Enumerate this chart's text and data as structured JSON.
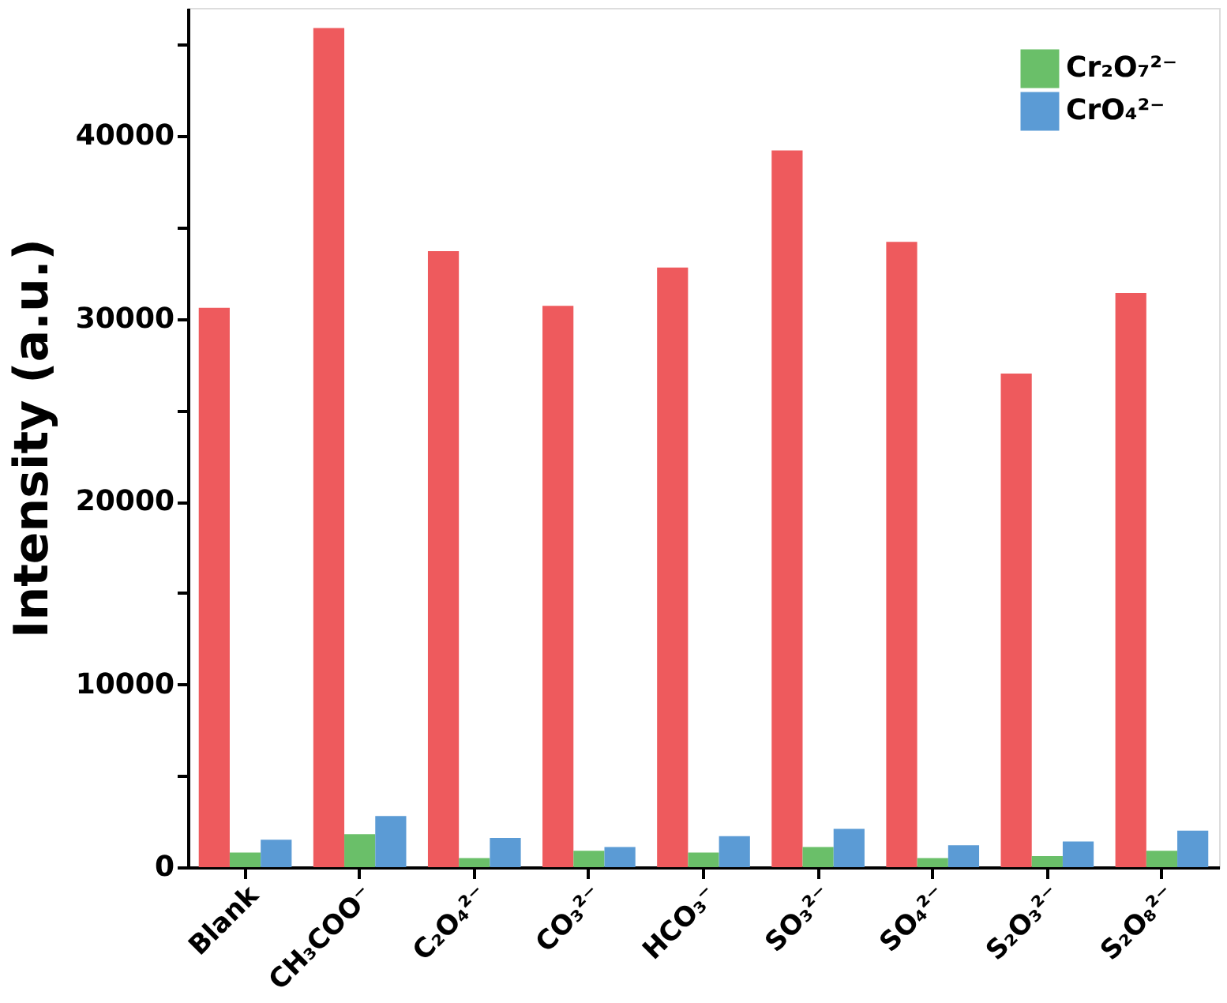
{
  "chart_data": {
    "type": "bar",
    "ylabel": "Intensity (a.u.)",
    "categories": [
      "Blank",
      "CH₃COO⁻",
      "C₂O₄²⁻",
      "CO₃²⁻",
      "HCO₃⁻",
      "SO₃²⁻",
      "SO₄²⁻",
      "S₂O₃²⁻",
      "S₂O₈²⁻"
    ],
    "series": [
      {
        "color": "#ee5a5d",
        "values": [
          30600,
          45900,
          33700,
          30700,
          32800,
          39200,
          34200,
          27000,
          31400
        ]
      },
      {
        "name": "Cr₂O₇²⁻",
        "color": "#6abf69",
        "values": [
          800,
          1800,
          500,
          900,
          800,
          1100,
          500,
          600,
          900
        ]
      },
      {
        "name": "CrO₄²⁻",
        "color": "#5b9bd5",
        "values": [
          1500,
          2800,
          1600,
          1100,
          1700,
          2100,
          1200,
          1400,
          2000
        ]
      }
    ],
    "ylim": [
      0,
      47000
    ],
    "yticks": [
      0,
      {
        "value": 5000,
        "label": null
      },
      10000,
      {
        "value": 15000,
        "label": null
      },
      20000,
      {
        "value": 25000,
        "label": null
      },
      30000,
      {
        "value": 35000,
        "label": null
      },
      40000,
      {
        "value": 45000,
        "label": null
      }
    ],
    "legend": "top right",
    "grid": false
  }
}
